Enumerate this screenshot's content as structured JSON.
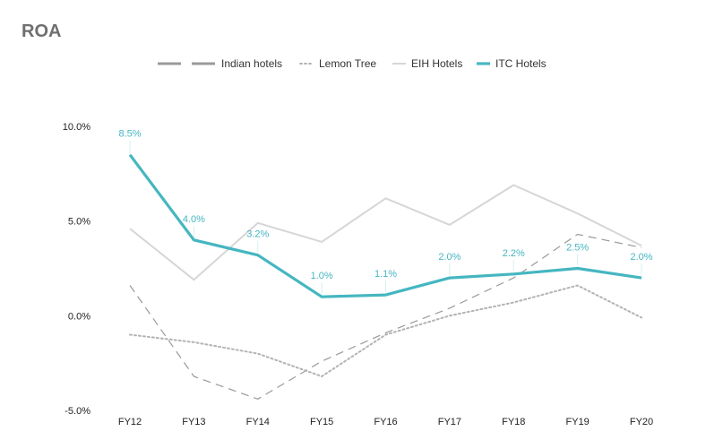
{
  "chart_data": {
    "type": "line",
    "title": "ROA",
    "categories": [
      "FY12",
      "FY13",
      "FY14",
      "FY15",
      "FY16",
      "FY17",
      "FY18",
      "FY19",
      "FY20"
    ],
    "ylim": [
      -5,
      10
    ],
    "yticks": [
      10,
      5,
      0,
      -5
    ],
    "ytick_labels": [
      "10.0%",
      "5.0%",
      "0.0%",
      "-5.0%"
    ],
    "grid": false,
    "legend_position": "top",
    "series": [
      {
        "name": "Indian hotels",
        "values": [
          1.6,
          -3.2,
          -4.4,
          -2.4,
          -0.9,
          0.4,
          2.0,
          4.3,
          3.6
        ],
        "color": "#9a9a9a",
        "style": "dashed"
      },
      {
        "name": "Lemon Tree",
        "values": [
          -1.0,
          -1.4,
          -2.0,
          -3.2,
          -1.0,
          0.0,
          0.7,
          1.6,
          -0.1
        ],
        "color": "#b3b3b3",
        "style": "dotted"
      },
      {
        "name": "EIH Hotels",
        "values": [
          4.6,
          1.9,
          4.9,
          3.9,
          6.2,
          4.8,
          6.9,
          5.4,
          3.7
        ],
        "color": "#d6d6d6",
        "style": "solid"
      },
      {
        "name": "ITC Hotels",
        "values": [
          8.5,
          4.0,
          3.2,
          1.0,
          1.1,
          2.0,
          2.2,
          2.5,
          2.0
        ],
        "color": "#45b6c1",
        "style": "solid-thick",
        "data_labels": [
          "8.5%",
          "4.0%",
          "3.2%",
          "1.0%",
          "1.1%",
          "2.0%",
          "2.2%",
          "2.5%",
          "2.0%"
        ]
      }
    ]
  }
}
